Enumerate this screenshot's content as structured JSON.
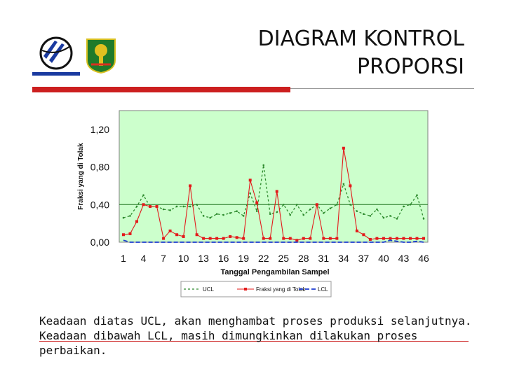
{
  "header": {
    "title_line1": "DIAGRAM KONTROL",
    "title_line2": "PROPORSI"
  },
  "logos": {
    "left": {
      "icon": "university-logo-icon",
      "colors": [
        "#1a3aa0",
        "#0a0a0a"
      ]
    },
    "right": {
      "icon": "regional-emblem-icon",
      "colors": [
        "#1f7a2a",
        "#e0c020"
      ]
    }
  },
  "colors": {
    "accent_red": "#cc1f1f",
    "plot_bg": "#ccffcc",
    "ucl": "#2e8b2e",
    "fraction": "#e31a1a",
    "lcl": "#1a3ad0",
    "center_line": "#3a8a3a"
  },
  "chart_data": {
    "type": "line",
    "xlabel": "Tanggal Pengambilan Sampel",
    "ylabel": "Fraksi yang di Tolak",
    "x_ticks": [
      "1",
      "4",
      "7",
      "10",
      "13",
      "16",
      "19",
      "22",
      "25",
      "28",
      "31",
      "34",
      "37",
      "40",
      "43",
      "46"
    ],
    "y_ticks": [
      "0,00",
      "0,40",
      "0,80",
      "1,20"
    ],
    "ylim": [
      0,
      1.4
    ],
    "xlim": [
      1,
      46
    ],
    "center_line": 0.4,
    "legend": {
      "placement": "bottom",
      "items": [
        "UCL",
        "Fraksi yang di Tolak",
        "LCL"
      ]
    },
    "grid": false,
    "series": [
      {
        "name": "UCL",
        "style": "dashed-green",
        "values": [
          0.26,
          0.28,
          0.38,
          0.5,
          0.38,
          0.38,
          0.35,
          0.34,
          0.38,
          0.38,
          0.38,
          0.4,
          0.28,
          0.26,
          0.3,
          0.29,
          0.31,
          0.33,
          0.28,
          0.52,
          0.33,
          0.82,
          0.3,
          0.32,
          0.4,
          0.29,
          0.4,
          0.29,
          0.35,
          0.4,
          0.31,
          0.36,
          0.4,
          0.62,
          0.4,
          0.33,
          0.3,
          0.28,
          0.35,
          0.26,
          0.28,
          0.25,
          0.38,
          0.4,
          0.5,
          0.25
        ]
      },
      {
        "name": "Fraksi yang di Tolak",
        "style": "solid-red",
        "values": [
          0.08,
          0.09,
          0.22,
          0.4,
          0.38,
          0.38,
          0.04,
          0.12,
          0.08,
          0.06,
          0.6,
          0.08,
          0.04,
          0.04,
          0.04,
          0.04,
          0.06,
          0.05,
          0.04,
          0.66,
          0.42,
          0.04,
          0.04,
          0.54,
          0.04,
          0.04,
          0.02,
          0.04,
          0.04,
          0.4,
          0.04,
          0.04,
          0.04,
          1.0,
          0.6,
          0.12,
          0.08,
          0.03,
          0.04,
          0.04,
          0.04,
          0.04,
          0.04,
          0.04,
          0.04,
          0.04
        ]
      },
      {
        "name": "LCL",
        "style": "dashed-blue",
        "values": [
          0.02,
          0.0,
          0.0,
          0.0,
          0.0,
          0.0,
          0.0,
          0.0,
          0.0,
          0.0,
          0.0,
          0.0,
          0.0,
          0.0,
          0.0,
          0.0,
          0.0,
          0.0,
          0.0,
          0.0,
          0.0,
          0.0,
          0.0,
          0.0,
          0.0,
          0.0,
          0.0,
          0.0,
          0.0,
          0.0,
          0.0,
          0.0,
          0.0,
          0.0,
          0.0,
          0.0,
          0.0,
          0.0,
          0.0,
          0.0,
          0.02,
          0.01,
          0.0,
          0.0,
          0.01,
          0.0
        ]
      }
    ]
  },
  "notes": {
    "line1": "Keadaan diatas UCL, akan menghambat proses produksi selanjutnya.",
    "line2": "Keadaan dibawah LCL, masih dimungkinkan dilakukan proses perbaikan."
  }
}
